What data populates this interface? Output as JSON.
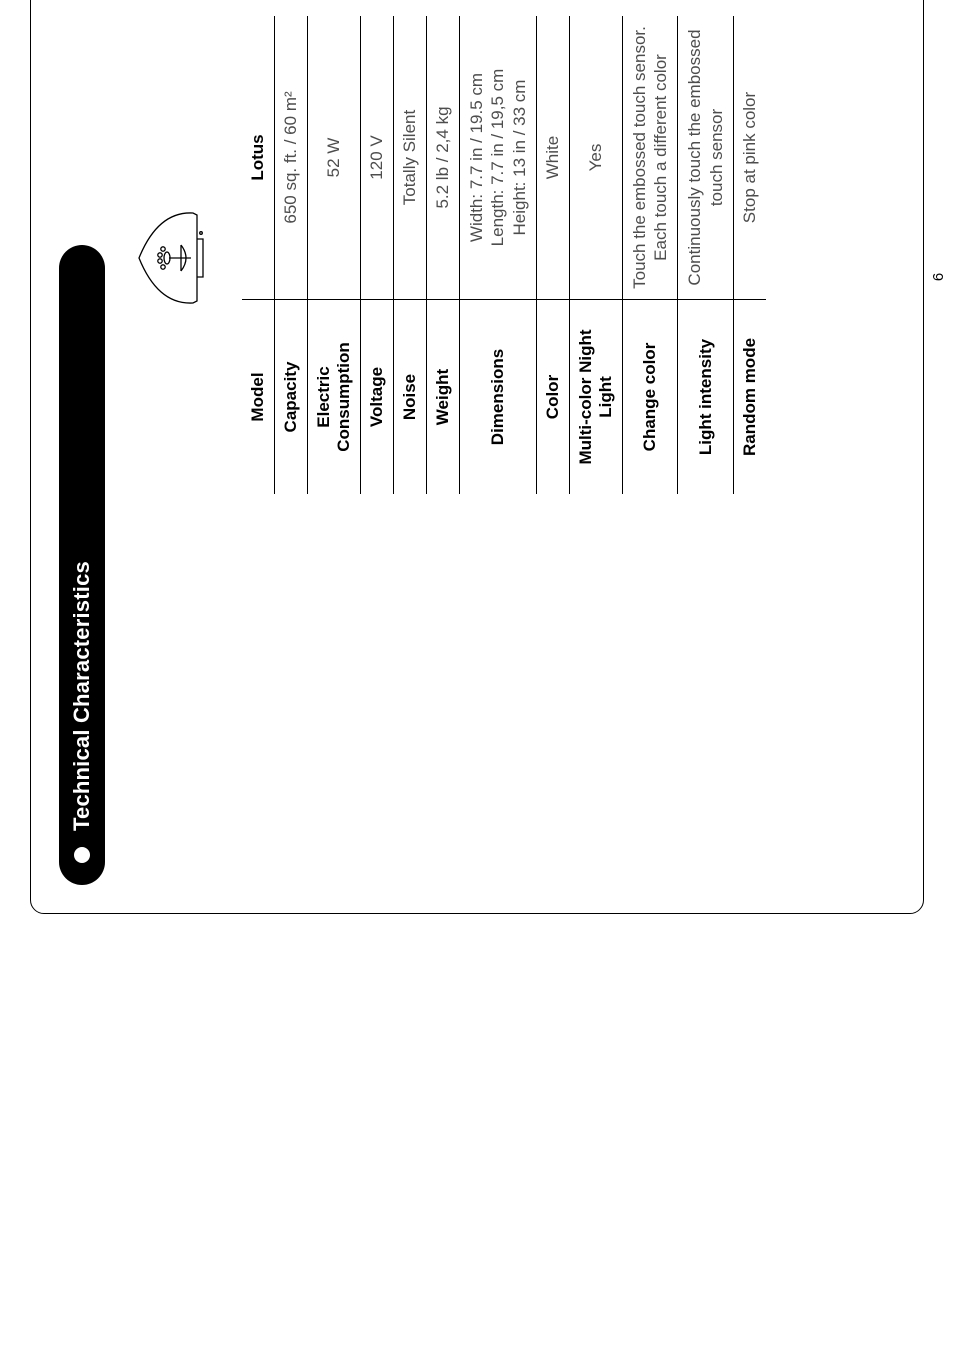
{
  "header": {
    "title": "Technical Characteristics"
  },
  "page_number": "6",
  "spec_table": {
    "rows": [
      {
        "label": "Model",
        "value": "Lotus",
        "value_bold": true
      },
      {
        "label": "Capacity",
        "value": "650 sq. ft. / 60 m²"
      },
      {
        "label": "Electric Consumption",
        "value": "52 W"
      },
      {
        "label": "Voltage",
        "value": "120 V"
      },
      {
        "label": "Noise",
        "value": "Totally Silent"
      },
      {
        "label": "Weight",
        "value": "5.2 lb / 2,4 kg"
      },
      {
        "label": "Dimensions",
        "value": "Width: 7.7 in / 19.5 cm\nLength: 7.7 in / 19,5 cm\nHeight: 13 in / 33 cm"
      },
      {
        "label": "Color",
        "value": "White"
      },
      {
        "label": "Multi-color Night Light",
        "value": "Yes"
      },
      {
        "label": "Change color",
        "value": "Touch the embossed touch sensor.\nEach touch a different color"
      },
      {
        "label": "Light intensity",
        "value": "Continuously touch the embossed\ntouch sensor"
      },
      {
        "label": "Random mode",
        "value": "Stop at pink color"
      }
    ]
  }
}
